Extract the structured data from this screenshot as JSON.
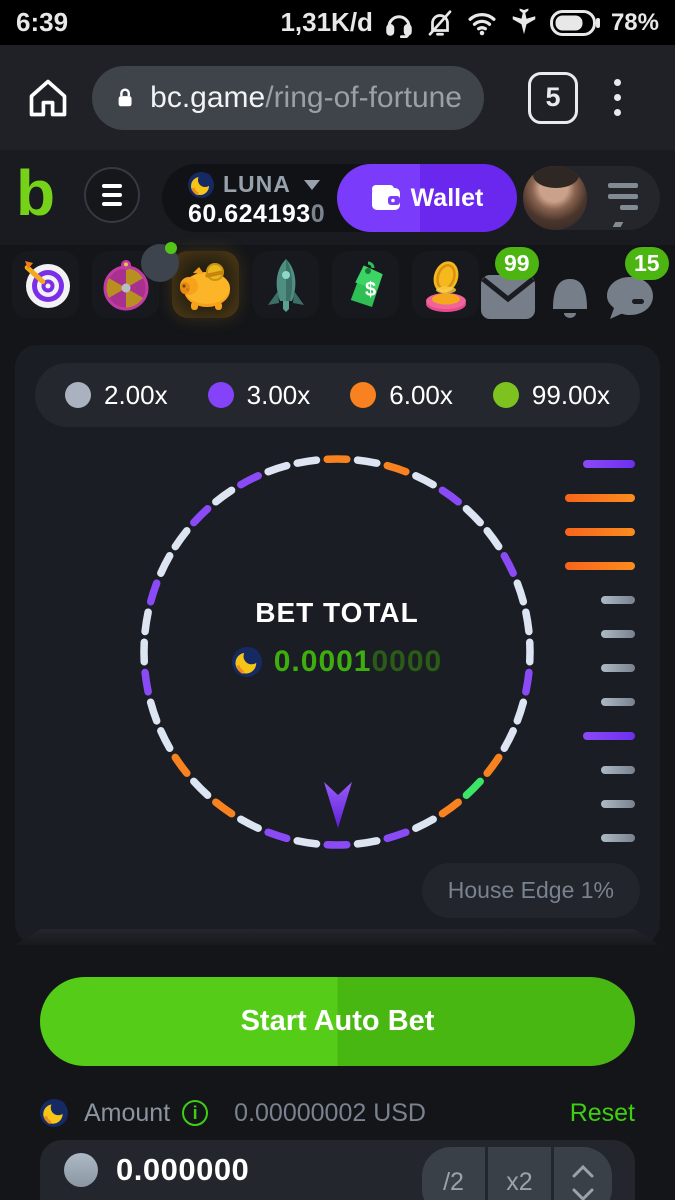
{
  "status_bar": {
    "time": "6:39",
    "data_rate": "1,31K/d",
    "battery_percent": "78%",
    "icons": [
      "headset-icon",
      "bell-muted-icon",
      "wifi-icon",
      "airplane-icon",
      "battery-icon"
    ]
  },
  "browser": {
    "url_host": "bc.game",
    "url_path": "/ring-of-fortune",
    "tab_count": "5"
  },
  "header": {
    "coin_name": "LUNA",
    "balance_main": "60.624193",
    "balance_dim": "0",
    "wallet_label": "Wallet"
  },
  "nav": {
    "mail_badge": "99",
    "chat_badge": "15",
    "tiles": [
      "dart-target",
      "fortune-wheel",
      "piggy-bank",
      "rocket",
      "price-tag",
      "coin-pile"
    ],
    "active_tile": "piggy-bank"
  },
  "game": {
    "legend": [
      {
        "label": "2.00x",
        "color": "#A9B2BE"
      },
      {
        "label": "3.00x",
        "color": "#8443F8"
      },
      {
        "label": "6.00x",
        "color": "#F8821F"
      },
      {
        "label": "99.00x",
        "color": "#7DC21E"
      }
    ],
    "bet_total_label": "BET TOTAL",
    "bet_amount_bright": "0.0001",
    "bet_amount_dim": "0000",
    "house_edge_label": "House Edge 1%",
    "wheel": {
      "palette": {
        "gray": "#DDE4F2",
        "purple": "#8A4BF6",
        "orange": "#F8821F",
        "green": "#3CE467"
      },
      "dash_colors": [
        "orange",
        "gray",
        "orange",
        "gray",
        "purple",
        "gray",
        "gray",
        "purple",
        "gray",
        "gray",
        "gray",
        "purple",
        "gray",
        "gray",
        "orange",
        "green",
        "orange",
        "gray",
        "purple",
        "gray",
        "purple",
        "gray",
        "purple",
        "gray",
        "orange",
        "gray",
        "orange",
        "gray",
        "gray",
        "purple",
        "gray",
        "gray",
        "purple",
        "gray",
        "gray",
        "purple",
        "gray",
        "purple",
        "gray",
        "gray"
      ]
    },
    "history": {
      "legend_map": {
        "gray": "2.00x",
        "purple": "3.00x",
        "orange": "6.00x",
        "green": "99.00x"
      },
      "results": [
        "purple",
        "orange",
        "orange",
        "orange",
        "gray",
        "gray",
        "gray",
        "gray",
        "purple",
        "gray",
        "gray",
        "gray"
      ]
    }
  },
  "controls": {
    "start_label": "Start Auto Bet",
    "amount_label": "Amount",
    "amount_usd": "0.00000002 USD",
    "reset_label": "Reset",
    "amount_value": "0.000000",
    "half_label": "/2",
    "double_label": "x2"
  }
}
